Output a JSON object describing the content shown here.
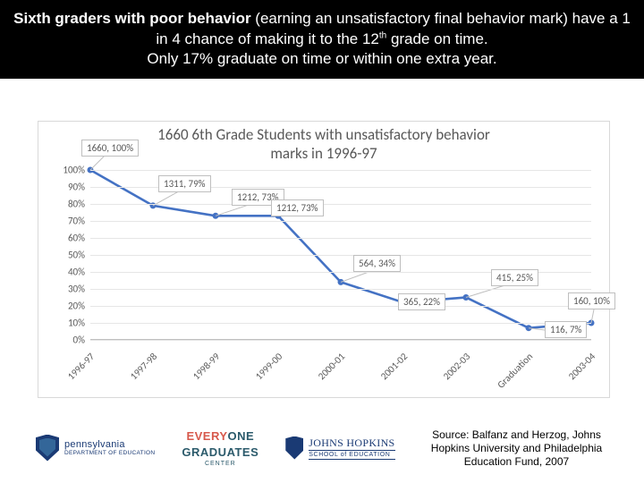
{
  "banner": {
    "seg_bold": "Sixth graders with poor behavior",
    "seg_a": " (earning an unsatisfactory final behavior mark) have a 1 in 4 chance of making it to the 12",
    "seg_sup": "th",
    "seg_b": " grade on time.",
    "line2": "Only 17% graduate on time or within one extra year."
  },
  "chart": {
    "type": "line",
    "title_line1": "1660 6th Grade Students with unsatisfactory behavior",
    "title_line2": "marks in 1996-97",
    "title_fontsize": 17,
    "title_color": "#595959",
    "background_color": "#ffffff",
    "border_color": "#d9d9d9",
    "grid_color": "#e6e6e6",
    "axis_color": "#bfbfbf",
    "tick_color": "#595959",
    "tick_fontsize": 11,
    "line_color": "#4472c4",
    "line_width": 2.6,
    "marker_color": "#4472c4",
    "marker_radius": 3,
    "ylim": [
      0,
      100
    ],
    "ytick_step": 10,
    "ytick_format": "percent",
    "categories": [
      "1996-97",
      "1997-98",
      "1998-99",
      "1999-00",
      "2000-01",
      "2001-02",
      "2002-03",
      "Graduation",
      "2003-04"
    ],
    "values_pct": [
      100,
      79,
      73,
      73,
      34,
      22,
      25,
      7,
      10
    ],
    "data_labels": [
      "1660, 100%",
      "1311, 79%",
      "1212, 73%",
      "1212, 73%",
      "564, 34%",
      "365, 22%",
      "415, 25%",
      "116, 7%",
      "160, 10%"
    ],
    "callout_border": "#bfbfbf",
    "callout_bg": "#ffffff"
  },
  "logos": {
    "pa_line1": "pennsylvania",
    "pa_line2": "DEPARTMENT OF EDUCATION",
    "eg_w1": "EVERY",
    "eg_w2": "ONE",
    "eg_w3": "GRADUATES",
    "eg_w4": "CENTER",
    "jh_line1": "JOHNS HOPKINS",
    "jh_line2": "SCHOOL of EDUCATION"
  },
  "source": {
    "text": "Source: Balfanz and Herzog, Johns Hopkins University and Philadelphia Education Fund, 2007"
  }
}
